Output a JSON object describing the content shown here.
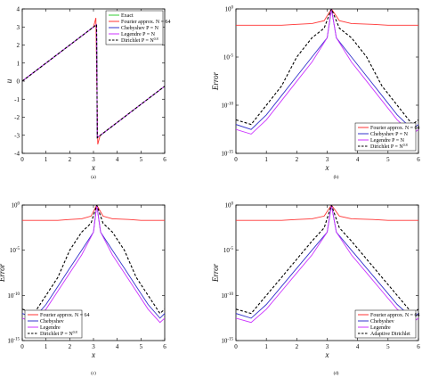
{
  "chart_data": [
    {
      "id": "a",
      "type": "line",
      "caption": "(a)",
      "xlabel": "x",
      "ylabel": "u",
      "yscale": "linear",
      "xlim": [
        0,
        6
      ],
      "ylim": [
        -4,
        4
      ],
      "xticks": [
        0,
        1,
        2,
        3,
        4,
        5,
        6
      ],
      "yticks": [
        -4,
        -3,
        -2,
        -1,
        0,
        1,
        2,
        3,
        4
      ],
      "ytick_labels": [
        "-4",
        "-3",
        "-2",
        "-1",
        "0",
        "1",
        "2",
        "3",
        "4"
      ],
      "legend_position": "top-right",
      "series": [
        {
          "name": "Exact",
          "color": "#33cc33",
          "style": "solid",
          "x": [
            0,
            3.13,
            3.16,
            6.0
          ],
          "y": [
            0,
            3.13,
            -3.13,
            -0.28
          ]
        },
        {
          "name": "Fourier approx. N = 64",
          "color": "#ff3333",
          "style": "solid",
          "x": [
            0,
            3.0,
            3.1,
            3.14,
            3.18,
            3.28,
            6.0
          ],
          "y": [
            0,
            3.0,
            3.5,
            0,
            -3.5,
            -3.0,
            -0.28
          ]
        },
        {
          "name": "Chebyshev P = N",
          "color": "#3333cc",
          "style": "solid",
          "x": [
            0,
            3.13,
            3.16,
            6.0
          ],
          "y": [
            0,
            3.13,
            -3.13,
            -0.28
          ]
        },
        {
          "name": "Legendre P = N",
          "color": "#cc33ff",
          "style": "solid",
          "x": [
            0,
            3.13,
            3.16,
            6.0
          ],
          "y": [
            0,
            3.13,
            -3.13,
            -0.28
          ]
        },
        {
          "name": "Dirichlet P = N^0.8",
          "color": "#000000",
          "style": "dashed",
          "x": [
            0,
            3.13,
            3.16,
            6.0
          ],
          "y": [
            0,
            3.13,
            -3.13,
            -0.28
          ]
        }
      ]
    },
    {
      "id": "b",
      "type": "line",
      "caption": "(b)",
      "xlabel": "x",
      "ylabel": "Error",
      "yscale": "log",
      "xlim": [
        0,
        6
      ],
      "ylim": [
        1e-15,
        1
      ],
      "xticks": [
        0,
        1,
        2,
        3,
        4,
        5,
        6
      ],
      "yticks": [
        1,
        1e-05,
        1e-10,
        1e-15
      ],
      "ytick_labels": [
        "10^0",
        "10^-5",
        "10^-10",
        "10^-15"
      ],
      "legend_position": "bottom-right",
      "series": [
        {
          "name": "Fourier approx. N = 64",
          "color": "#ff3333",
          "style": "solid",
          "x": [
            0,
            0.5,
            1,
            1.5,
            2,
            2.5,
            2.9,
            3.14,
            3.4,
            3.8,
            4.5,
            5,
            5.5,
            6
          ],
          "y": [
            0.02,
            0.02,
            0.02,
            0.02,
            0.025,
            0.03,
            0.06,
            1,
            0.06,
            0.03,
            0.025,
            0.02,
            0.02,
            0.02
          ]
        },
        {
          "name": "Chebyshev P = N",
          "color": "#3333cc",
          "style": "solid",
          "x": [
            0,
            0.5,
            1,
            1.5,
            2,
            2.5,
            3.0,
            3.14,
            3.3,
            3.8,
            4.3,
            4.8,
            5.3,
            5.8,
            6
          ],
          "y": [
            1e-12,
            3e-13,
            1e-11,
            1e-09,
            1e-07,
            1e-05,
            0.001,
            1,
            0.001,
            1e-05,
            1e-07,
            1e-09,
            1e-11,
            3e-13,
            1e-12
          ]
        },
        {
          "name": "Legendre P = N",
          "color": "#cc33ff",
          "style": "solid",
          "x": [
            0,
            0.5,
            1,
            1.5,
            2,
            2.5,
            3.0,
            3.14,
            3.3,
            3.8,
            4.3,
            4.8,
            5.3,
            5.8,
            6
          ],
          "y": [
            3e-13,
            1e-13,
            3e-12,
            3e-10,
            3e-08,
            3e-06,
            0.001,
            1,
            0.001,
            3e-06,
            3e-08,
            3e-10,
            3e-12,
            1e-13,
            3e-13
          ]
        },
        {
          "name": "Dirichlet P = N^0.8",
          "color": "#000000",
          "style": "dashed",
          "x": [
            0,
            0.5,
            1,
            1.5,
            2,
            2.5,
            2.9,
            3.14,
            3.4,
            3.8,
            4.3,
            4.8,
            5.3,
            5.8,
            6
          ],
          "y": [
            3e-12,
            1e-12,
            1e-10,
            1e-08,
            1e-05,
            0.001,
            0.01,
            1,
            0.01,
            0.001,
            1e-05,
            1e-08,
            1e-10,
            1e-12,
            3e-12
          ]
        }
      ]
    },
    {
      "id": "c",
      "type": "line",
      "caption": "(c)",
      "xlabel": "x",
      "ylabel": "Error",
      "yscale": "log",
      "xlim": [
        0,
        6
      ],
      "ylim": [
        1e-15,
        1
      ],
      "xticks": [
        0,
        1,
        2,
        3,
        4,
        5,
        6
      ],
      "yticks": [
        1,
        1e-05,
        1e-10,
        1e-15
      ],
      "ytick_labels": [
        "10^0",
        "10^-5",
        "10^-10",
        "10^-15"
      ],
      "legend_position": "bottom-left",
      "series": [
        {
          "name": "Fourier approx. N = 64",
          "color": "#ff3333",
          "style": "solid",
          "x": [
            0,
            0.5,
            1,
            1.5,
            2,
            2.5,
            2.9,
            3.14,
            3.4,
            3.8,
            4.5,
            5,
            5.5,
            6
          ],
          "y": [
            0.02,
            0.02,
            0.02,
            0.02,
            0.025,
            0.03,
            0.06,
            1,
            0.06,
            0.03,
            0.025,
            0.02,
            0.02,
            0.02
          ]
        },
        {
          "name": "Chebyshev",
          "color": "#3333cc",
          "style": "solid",
          "x": [
            0,
            0.5,
            1,
            1.5,
            2,
            2.5,
            3.0,
            3.14,
            3.3,
            3.8,
            4.3,
            4.8,
            5.3,
            5.8,
            6
          ],
          "y": [
            1e-12,
            3e-13,
            1e-11,
            1e-09,
            1e-07,
            1e-05,
            0.001,
            1,
            0.001,
            1e-05,
            1e-07,
            1e-09,
            1e-11,
            3e-13,
            1e-12
          ]
        },
        {
          "name": "Legendre",
          "color": "#cc33ff",
          "style": "solid",
          "x": [
            0,
            0.5,
            1,
            1.5,
            2,
            2.5,
            3.0,
            3.14,
            3.3,
            3.8,
            4.3,
            4.8,
            5.3,
            5.8,
            6
          ],
          "y": [
            3e-13,
            1e-13,
            3e-12,
            3e-10,
            3e-08,
            3e-06,
            0.001,
            1,
            0.001,
            3e-06,
            3e-08,
            3e-10,
            3e-12,
            1e-13,
            3e-13
          ]
        },
        {
          "name": "Dirichlet P = N^0.8",
          "color": "#000000",
          "style": "dashed",
          "x": [
            0,
            0.5,
            1,
            1.5,
            2,
            2.5,
            2.9,
            3.14,
            3.4,
            3.8,
            4.3,
            4.8,
            5.3,
            5.8,
            6
          ],
          "y": [
            3e-12,
            1e-12,
            1e-10,
            1e-08,
            1e-05,
            0.001,
            0.01,
            1,
            0.01,
            0.001,
            1e-05,
            1e-08,
            1e-10,
            1e-12,
            3e-12
          ]
        }
      ]
    },
    {
      "id": "d",
      "type": "line",
      "caption": "(d)",
      "xlabel": "x",
      "ylabel": "Error",
      "yscale": "log",
      "xlim": [
        0,
        6
      ],
      "ylim": [
        1e-15,
        1
      ],
      "xticks": [
        0,
        1,
        2,
        3,
        4,
        5,
        6
      ],
      "yticks": [
        1,
        1e-05,
        1e-10,
        1e-15
      ],
      "ytick_labels": [
        "10^0",
        "10^-5",
        "10^-10",
        "10^-15"
      ],
      "legend_position": "bottom-right",
      "series": [
        {
          "name": "Fourier approx. N = 64",
          "color": "#ff3333",
          "style": "solid",
          "x": [
            0,
            0.5,
            1,
            1.5,
            2,
            2.5,
            2.9,
            3.14,
            3.4,
            3.8,
            4.5,
            5,
            5.5,
            6
          ],
          "y": [
            0.02,
            0.02,
            0.02,
            0.02,
            0.025,
            0.03,
            0.06,
            1,
            0.06,
            0.03,
            0.025,
            0.02,
            0.02,
            0.02
          ]
        },
        {
          "name": "Chebyshev",
          "color": "#3333cc",
          "style": "solid",
          "x": [
            0,
            0.5,
            1,
            1.5,
            2,
            2.5,
            3.0,
            3.14,
            3.3,
            3.8,
            4.3,
            4.8,
            5.3,
            5.8,
            6
          ],
          "y": [
            1e-12,
            3e-13,
            1e-11,
            1e-09,
            1e-07,
            1e-05,
            0.001,
            1,
            0.001,
            1e-05,
            1e-07,
            1e-09,
            1e-11,
            3e-13,
            1e-12
          ]
        },
        {
          "name": "Legendre",
          "color": "#cc33ff",
          "style": "solid",
          "x": [
            0,
            0.5,
            1,
            1.5,
            2,
            2.5,
            3.0,
            3.14,
            3.3,
            3.8,
            4.3,
            4.8,
            5.3,
            5.8,
            6
          ],
          "y": [
            3e-13,
            1e-13,
            3e-12,
            3e-10,
            3e-08,
            3e-06,
            0.001,
            1,
            0.001,
            3e-06,
            3e-08,
            3e-10,
            3e-12,
            1e-13,
            3e-13
          ]
        },
        {
          "name": "Adaptive Dirichlet",
          "color": "#000000",
          "style": "dashed",
          "x": [
            0,
            0.5,
            1,
            1.5,
            2,
            2.5,
            2.9,
            3.14,
            3.4,
            3.8,
            4.3,
            4.8,
            5.3,
            5.8,
            6
          ],
          "y": [
            3e-12,
            1e-12,
            1e-10,
            1e-08,
            1e-06,
            0.0001,
            0.003,
            1,
            0.003,
            0.0001,
            1e-06,
            1e-08,
            1e-10,
            1e-12,
            3e-12
          ]
        }
      ]
    }
  ]
}
